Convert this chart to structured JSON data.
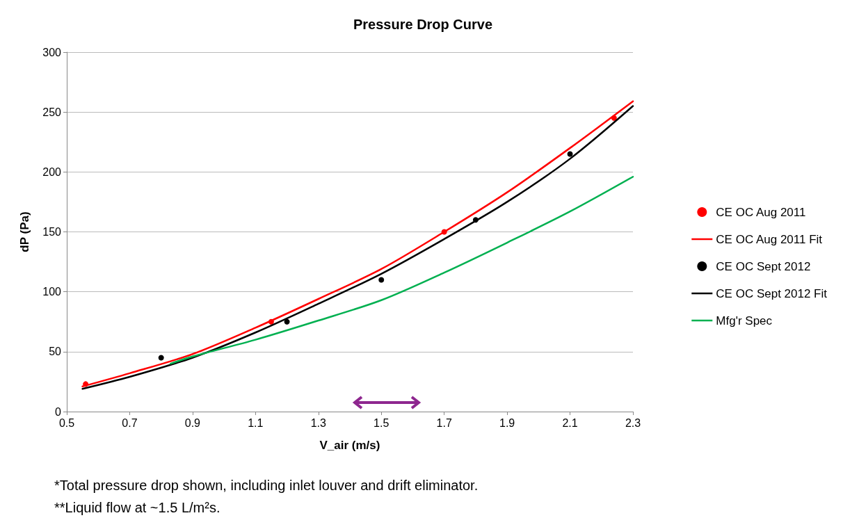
{
  "chart_data": {
    "type": "scatter",
    "title": "Pressure Drop Curve",
    "xlabel": "V_air (m/s)",
    "ylabel": "dP (Pa)",
    "xlim": [
      0.5,
      2.3
    ],
    "xticks": [
      0.5,
      0.7,
      0.9,
      1.1,
      1.3,
      1.5,
      1.7,
      1.9,
      2.1,
      2.3
    ],
    "ylim": [
      0,
      300
    ],
    "yticks": [
      0,
      50,
      100,
      150,
      200,
      250,
      300
    ],
    "grid": "y",
    "legend": "right",
    "series": [
      {
        "name": "CE OC Aug 2011",
        "marker": "circle",
        "color": "#ff0000",
        "x": [
          0.56,
          1.15,
          1.7,
          2.24
        ],
        "values": [
          23,
          75,
          150,
          245
        ]
      },
      {
        "name": "CE OC Aug 2011 Fit",
        "type": "line",
        "marker": "none",
        "color": "#ff0000",
        "x": [
          0.55,
          0.7,
          0.9,
          1.1,
          1.3,
          1.5,
          1.7,
          1.9,
          2.1,
          2.3
        ],
        "values": [
          21,
          32,
          48,
          70,
          94,
          119,
          150,
          183,
          220,
          259
        ]
      },
      {
        "name": "CE OC Sept 2012",
        "marker": "circle",
        "color": "#000000",
        "x": [
          0.8,
          1.2,
          1.5,
          1.8,
          2.1
        ],
        "values": [
          45,
          75,
          110,
          160,
          215
        ]
      },
      {
        "name": "CE OC Sept 2012 Fit",
        "type": "line",
        "marker": "none",
        "color": "#000000",
        "x": [
          0.55,
          0.7,
          0.9,
          1.1,
          1.3,
          1.5,
          1.7,
          1.9,
          2.1,
          2.3
        ],
        "values": [
          19,
          29,
          45,
          66,
          90,
          115,
          144,
          175,
          211,
          255
        ]
      },
      {
        "name": "Mfg'r Spec",
        "type": "line",
        "marker": "none",
        "color": "#00b050",
        "x": [
          0.83,
          0.9,
          1.1,
          1.3,
          1.5,
          1.7,
          1.9,
          2.1,
          2.3
        ],
        "values": [
          40,
          46,
          60,
          76,
          93,
          116,
          141,
          167,
          196
        ]
      }
    ],
    "annotations": [
      "*Total pressure drop shown, including inlet louver and drift eliminator.",
      "**Liquid flow at ~1.5 L/m²s."
    ]
  }
}
